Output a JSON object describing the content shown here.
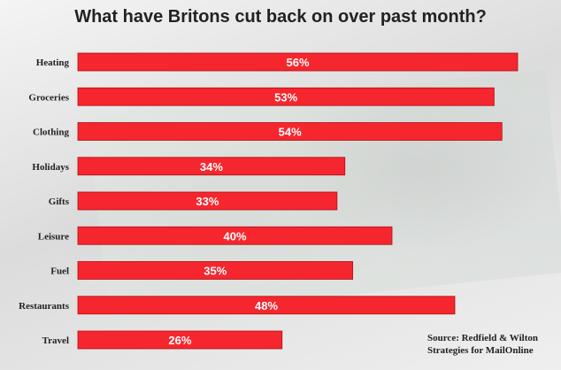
{
  "title": "What have Britons cut back on over past month?",
  "source": {
    "line1": "Source: Redfield & Wilton",
    "line2": "Strategies for MailOnline"
  },
  "colors": {
    "bar": "#f5262d",
    "bar_stroke": "#b01016",
    "label": "#ffffff",
    "category": "#222222"
  },
  "chart_data": {
    "type": "bar",
    "orientation": "horizontal",
    "title": "What have Britons cut back on over past month?",
    "categories": [
      "Heating",
      "Groceries",
      "Clothing",
      "Holidays",
      "Gifts",
      "Leisure",
      "Fuel",
      "Restaurants",
      "Travel"
    ],
    "values": [
      56,
      53,
      54,
      34,
      33,
      40,
      35,
      48,
      26
    ],
    "labels": [
      "56%",
      "53%",
      "54%",
      "34%",
      "33%",
      "40%",
      "35%",
      "48%",
      "26%"
    ],
    "unit": "%",
    "xlim": [
      0,
      56
    ],
    "xlabel": "",
    "ylabel": "",
    "grid": false,
    "legend": "none"
  }
}
